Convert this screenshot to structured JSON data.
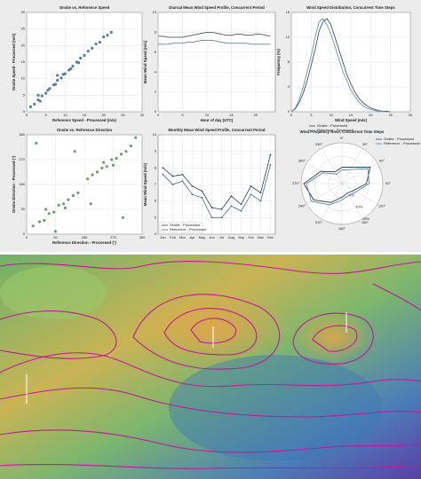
{
  "chart_data": [
    {
      "type": "scatter",
      "title": "Onsite vs. Reference Speed",
      "x_label": "Reference Speed - Processed (m/s)",
      "y_label": "Onsite Speed - Processed (m/s)",
      "color": "#2c5f93",
      "x": [
        1,
        2,
        3,
        3.5,
        4,
        5,
        5.5,
        6,
        7,
        7.5,
        8,
        9,
        9.5,
        10,
        11,
        11.5,
        12,
        13,
        13.5,
        14,
        15,
        16,
        17,
        18,
        19,
        20,
        21,
        22,
        3,
        8
      ],
      "y": [
        1.5,
        2.3,
        3.6,
        3.2,
        4.8,
        5.6,
        6.5,
        7.0,
        8.1,
        8.3,
        9.5,
        10.2,
        11.3,
        11.5,
        12.6,
        13.0,
        13.8,
        15.0,
        14.8,
        16.2,
        17.0,
        18.3,
        19.2,
        20.5,
        21.0,
        22.6,
        23.1,
        24.0,
        5.0,
        11.0
      ],
      "xlim": [
        0,
        30
      ],
      "ylim": [
        0,
        30
      ],
      "xticks": [
        0,
        5,
        10,
        15,
        20,
        25,
        30
      ],
      "yticks": [
        0,
        5,
        10,
        15,
        20,
        25,
        30
      ],
      "grid": true
    },
    {
      "type": "line",
      "title": "Diurnal Mean Wind Speed Profile, Concurrent Period",
      "x_label": "Hour of day (UTC)",
      "y_label": "Mean Wind Speed (m/s)",
      "x": [
        0,
        1,
        2,
        3,
        4,
        5,
        6,
        7,
        8,
        9,
        10,
        11,
        12,
        13,
        14,
        15,
        16,
        17,
        18,
        19,
        20,
        21,
        22,
        23
      ],
      "series": [
        {
          "color": "#2f3f4f",
          "values": [
            7.6,
            7.6,
            7.5,
            7.5,
            7.5,
            7.5,
            7.6,
            7.7,
            7.8,
            7.9,
            8.0,
            8.0,
            7.9,
            7.8,
            7.7,
            7.7,
            7.8,
            7.8,
            7.7,
            7.7,
            7.8,
            7.8,
            7.7,
            7.6
          ]
        },
        {
          "color": "#4b6f86",
          "values": [
            6.8,
            6.8,
            6.8,
            6.9,
            6.9,
            6.9,
            7.0,
            7.0,
            7.1,
            7.2,
            7.2,
            7.2,
            7.1,
            7.0,
            6.9,
            6.9,
            6.9,
            6.9,
            6.9,
            6.8,
            6.8,
            6.8,
            6.8,
            6.8
          ]
        }
      ],
      "xlim": [
        0,
        24
      ],
      "ylim": [
        0,
        10
      ],
      "xticks": [
        0,
        5,
        10,
        15,
        20
      ],
      "yticks": [
        0,
        2,
        4,
        6,
        8,
        10
      ],
      "grid": true
    },
    {
      "type": "line",
      "title": "Wind Speed Distribution, Concurrent Time Steps",
      "x_label": "Wind Speed (m/s)",
      "y_label": "Frequency (%)",
      "x": [
        0,
        1,
        2,
        3,
        4,
        5,
        6,
        7,
        8,
        9,
        10,
        11,
        12,
        13,
        14,
        15,
        16,
        17,
        18,
        19,
        20,
        21,
        22,
        23,
        24,
        25
      ],
      "series": [
        {
          "name": "Onsite - Processed",
          "color": "#2f3f4f",
          "values": [
            0,
            0.5,
            1.5,
            3,
            5,
            7.5,
            10,
            13,
            14.5,
            15,
            14,
            12,
            10,
            8,
            6,
            4.5,
            3.2,
            2.2,
            1.5,
            1,
            0.6,
            0.4,
            0.2,
            0.1,
            0.1,
            0
          ]
        },
        {
          "name": "Reference - Processed",
          "color": "#5b8aa6",
          "values": [
            0,
            0.6,
            2,
            4,
            6.5,
            9,
            12,
            14.5,
            15,
            14,
            12.5,
            10.5,
            8.5,
            6.5,
            5,
            3.5,
            2.5,
            1.6,
            1,
            0.6,
            0.4,
            0.2,
            0.1,
            0.1,
            0,
            0
          ]
        }
      ],
      "xlim": [
        0,
        30
      ],
      "ylim": [
        0,
        16
      ],
      "xticks": [
        0,
        5,
        10,
        15,
        20,
        25,
        30
      ],
      "yticks": [
        0,
        4,
        8,
        12,
        16
      ],
      "grid": true,
      "legend": "bottom"
    },
    {
      "type": "scatter",
      "title": "Onsite vs. Reference Direction",
      "x_label": "Reference Direction - Processed (°)",
      "y_label": "Onsite Direction - Processed (°)",
      "color": "#4a8a4a",
      "x": [
        20,
        40,
        55,
        70,
        85,
        100,
        115,
        130,
        145,
        160,
        60,
        120,
        190,
        205,
        220,
        235,
        250,
        265,
        280,
        295,
        310,
        325,
        240,
        270,
        30,
        300,
        150,
        200,
        90,
        340
      ],
      "y": [
        30,
        45,
        50,
        75,
        80,
        105,
        110,
        125,
        140,
        150,
        90,
        95,
        200,
        215,
        225,
        240,
        245,
        270,
        275,
        290,
        300,
        320,
        260,
        250,
        330,
        60,
        300,
        110,
        10,
        350
      ],
      "xlim": [
        0,
        360
      ],
      "ylim": [
        0,
        360
      ],
      "xticks": [
        0,
        90,
        180,
        270,
        360
      ],
      "yticks": [
        0,
        90,
        180,
        270,
        360
      ],
      "grid": true
    },
    {
      "type": "line",
      "title": "Monthly Mean Wind Speed Profile, Concurrent Period",
      "y_label": "Mean Wind Speed (m/s)",
      "categories": [
        "Jan",
        "Feb",
        "Mar",
        "Apr",
        "May",
        "Jun",
        "Jul",
        "Aug",
        "Sep",
        "Oct",
        "Nov",
        "Dec"
      ],
      "series": [
        {
          "name": "Onsite - Processed",
          "color": "#2f3f4f",
          "values": [
            8.0,
            7.5,
            7.6,
            6.9,
            6.6,
            5.6,
            5.5,
            6.3,
            5.8,
            6.9,
            6.5,
            8.8
          ]
        },
        {
          "name": "Reference - Processed",
          "color": "#4b6f86",
          "values": [
            7.6,
            7.0,
            7.2,
            6.4,
            6.2,
            5.0,
            5.0,
            5.7,
            5.4,
            6.4,
            6.0,
            8.2
          ]
        }
      ],
      "ylim": [
        4,
        10
      ],
      "yticks": [
        4,
        5,
        6,
        7,
        8,
        9,
        10
      ],
      "grid": true,
      "legend": "lower left"
    },
    {
      "type": "polar",
      "title": "Wind Frequency Rose, Concurrent Time Steps",
      "categories": [
        "0°",
        "30°",
        "60°",
        "90°",
        "120°",
        "150°",
        "180°",
        "210°",
        "240°",
        "270°",
        "300°",
        "330°"
      ],
      "series": [
        {
          "name": "Onsite - Processed",
          "color": "#2f3f4f",
          "values": [
            6,
            7,
            12,
            9,
            5,
            4,
            5,
            8,
            12,
            14,
            9,
            5
          ]
        },
        {
          "name": "Reference - Processed",
          "color": "#5b8aa6",
          "values": [
            5,
            6,
            11,
            10,
            6,
            5,
            6,
            9,
            13,
            13,
            8,
            4
          ]
        }
      ],
      "rlim": [
        0,
        15
      ],
      "rticks": [
        {
          "value": 5,
          "label": "5%"
        },
        {
          "value": 10,
          "label": "10%"
        },
        {
          "value": 15,
          "label": "15%"
        }
      ],
      "legend": "upper right"
    }
  ]
}
